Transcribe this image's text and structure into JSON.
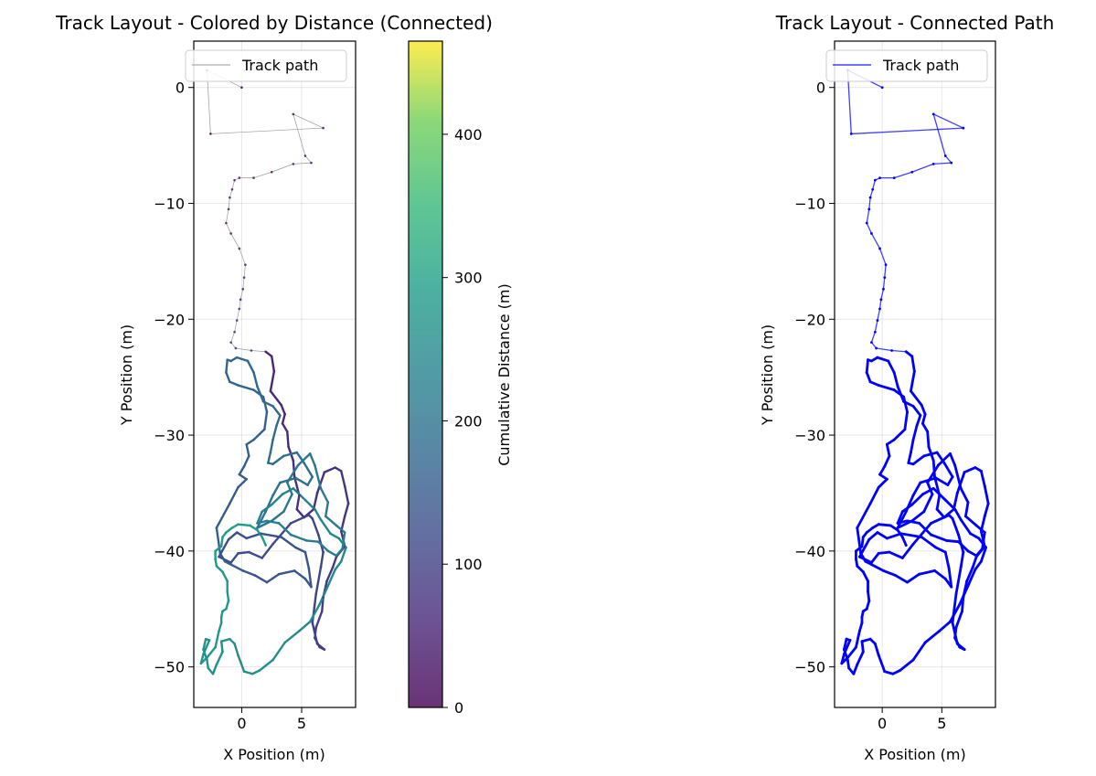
{
  "chart_data": [
    {
      "type": "line",
      "title": "Track Layout - Colored by Distance (Connected)",
      "xlabel": "X Position (m)",
      "ylabel": "Y Position (m)",
      "xlim": [
        -4,
        9.5
      ],
      "ylim": [
        -53.5,
        4
      ],
      "xticks": [
        0,
        5
      ],
      "yticks": [
        0,
        -10,
        -20,
        -30,
        -40,
        -50
      ],
      "grid": true,
      "legend": {
        "position": "top-left",
        "entries": [
          "Track path"
        ]
      },
      "colorbar": {
        "label": "Cumulative Distance (m)",
        "range": [
          0,
          465
        ],
        "ticks": [
          0,
          100,
          200,
          300,
          400
        ],
        "colormap": "viridis"
      },
      "series": [
        {
          "name": "Track path",
          "color": "#999999",
          "points": [
            [
              0,
              0.0
            ],
            [
              -2.9,
              1.5
            ],
            [
              -2.6,
              -4.0
            ],
            [
              6.8,
              -3.5
            ],
            [
              4.3,
              -2.3
            ],
            [
              5.3,
              -5.9
            ],
            [
              5.8,
              -6.5
            ],
            [
              4.3,
              -6.6
            ],
            [
              2.5,
              -7.3
            ],
            [
              1.0,
              -7.8
            ],
            [
              -0.2,
              -7.8
            ],
            [
              -0.6,
              -8.0
            ],
            [
              -0.8,
              -8.8
            ],
            [
              -1.0,
              -9.5
            ],
            [
              -1.1,
              -10.5
            ],
            [
              -1.3,
              -11.7
            ],
            [
              -0.9,
              -12.6
            ],
            [
              -0.2,
              -13.9
            ],
            [
              0.3,
              -15.3
            ],
            [
              0.2,
              -16.4
            ],
            [
              0.1,
              -17.4
            ],
            [
              -0.1,
              -18.3
            ],
            [
              -0.2,
              -19.1
            ],
            [
              -0.4,
              -20.1
            ],
            [
              -0.6,
              -21.1
            ],
            [
              -0.9,
              -22.0
            ],
            [
              -0.5,
              -22.5
            ],
            [
              0.8,
              -22.7
            ],
            [
              2.0,
              -22.8
            ],
            [
              2.5,
              -23.2
            ],
            [
              2.7,
              -24.5
            ],
            [
              2.4,
              -26.2
            ],
            [
              3.3,
              -27.4
            ],
            [
              3.6,
              -28.2
            ],
            [
              3.4,
              -29.0
            ],
            [
              3.8,
              -29.7
            ],
            [
              3.9,
              -31.0
            ],
            [
              4.3,
              -32.2
            ],
            [
              4.4,
              -33.6
            ],
            [
              4.8,
              -35.2
            ],
            [
              4.6,
              -36.4
            ],
            [
              5.2,
              -37.1
            ],
            [
              6.0,
              -36.4
            ],
            [
              6.3,
              -35.0
            ],
            [
              6.9,
              -33.2
            ],
            [
              7.8,
              -32.8
            ],
            [
              8.3,
              -33.1
            ],
            [
              8.6,
              -34.4
            ],
            [
              8.9,
              -35.9
            ],
            [
              8.6,
              -37.0
            ],
            [
              8.3,
              -38.3
            ],
            [
              8.6,
              -39.6
            ],
            [
              7.9,
              -40.5
            ],
            [
              7.6,
              -41.4
            ],
            [
              7.1,
              -42.6
            ],
            [
              6.8,
              -44.0
            ],
            [
              6.7,
              -45.2
            ],
            [
              6.2,
              -46.6
            ],
            [
              6.1,
              -47.5
            ],
            [
              6.5,
              -48.3
            ],
            [
              6.9,
              -48.5
            ],
            [
              6.3,
              -48.0
            ],
            [
              5.9,
              -46.2
            ],
            [
              6.2,
              -43.7
            ],
            [
              6.6,
              -41.4
            ],
            [
              6.8,
              -40.1
            ],
            [
              6.4,
              -38.6
            ],
            [
              5.9,
              -37.2
            ],
            [
              5.6,
              -36.9
            ],
            [
              4.1,
              -37.6
            ],
            [
              2.6,
              -39.4
            ],
            [
              1.7,
              -40.6
            ],
            [
              0.6,
              -40.1
            ],
            [
              -0.3,
              -40.2
            ],
            [
              -0.9,
              -41.0
            ],
            [
              -1.9,
              -40.5
            ],
            [
              -1.1,
              -39.0
            ],
            [
              -0.4,
              -38.4
            ],
            [
              0.4,
              -38.9
            ],
            [
              1.6,
              -38.5
            ],
            [
              3.3,
              -38.8
            ],
            [
              4.5,
              -39.7
            ],
            [
              5.3,
              -40.1
            ],
            [
              5.6,
              -41.5
            ],
            [
              5.8,
              -43.1
            ],
            [
              5.3,
              -42.4
            ],
            [
              4.4,
              -41.7
            ],
            [
              3.1,
              -42.0
            ],
            [
              2.1,
              -42.7
            ],
            [
              1.1,
              -42.1
            ],
            [
              0.1,
              -41.7
            ],
            [
              -1.4,
              -40.9
            ],
            [
              -1.8,
              -40.2
            ],
            [
              -2.1,
              -38.0
            ],
            [
              -1.0,
              -35.9
            ],
            [
              -0.3,
              -34.5
            ],
            [
              0.4,
              -33.8
            ],
            [
              -0.2,
              -33.4
            ],
            [
              0.2,
              -32.7
            ],
            [
              0.6,
              -31.8
            ],
            [
              0.4,
              -30.8
            ],
            [
              1.0,
              -30.4
            ],
            [
              1.9,
              -29.5
            ],
            [
              2.1,
              -28.0
            ],
            [
              1.8,
              -26.7
            ],
            [
              1.0,
              -26.1
            ],
            [
              -0.3,
              -25.7
            ],
            [
              -1.0,
              -25.4
            ],
            [
              -1.3,
              -24.6
            ],
            [
              -1.2,
              -23.5
            ],
            [
              -0.9,
              -23.6
            ],
            [
              -0.4,
              -23.3
            ],
            [
              0.5,
              -23.6
            ],
            [
              1.0,
              -24.6
            ],
            [
              1.3,
              -25.8
            ],
            [
              1.8,
              -27.1
            ],
            [
              2.6,
              -27.5
            ],
            [
              3.2,
              -28.3
            ],
            [
              2.9,
              -29.2
            ],
            [
              2.6,
              -30.4
            ],
            [
              2.4,
              -31.5
            ],
            [
              2.2,
              -32.4
            ],
            [
              2.6,
              -32.5
            ],
            [
              3.5,
              -31.8
            ],
            [
              4.6,
              -31.5
            ],
            [
              5.2,
              -32.4
            ],
            [
              5.9,
              -33.6
            ],
            [
              5.5,
              -34.3
            ],
            [
              4.5,
              -33.7
            ],
            [
              3.2,
              -34.1
            ],
            [
              2.6,
              -35.2
            ],
            [
              2.0,
              -36.6
            ],
            [
              1.3,
              -38.0
            ],
            [
              2.5,
              -37.4
            ],
            [
              3.5,
              -36.6
            ],
            [
              4.2,
              -35.1
            ],
            [
              3.8,
              -34.1
            ],
            [
              4.7,
              -32.6
            ],
            [
              5.7,
              -31.6
            ],
            [
              6.1,
              -32.6
            ],
            [
              6.6,
              -34.6
            ],
            [
              7.2,
              -35.8
            ],
            [
              7.0,
              -37.0
            ],
            [
              7.9,
              -37.8
            ],
            [
              8.6,
              -38.4
            ],
            [
              8.4,
              -39.8
            ],
            [
              7.9,
              -40.4
            ],
            [
              7.2,
              -40.0
            ],
            [
              6.4,
              -39.2
            ],
            [
              5.4,
              -39.1
            ],
            [
              4.1,
              -38.6
            ],
            [
              3.1,
              -37.6
            ],
            [
              2.1,
              -37.4
            ],
            [
              1.3,
              -37.6
            ],
            [
              1.7,
              -36.6
            ],
            [
              2.5,
              -36.0
            ],
            [
              3.4,
              -35.1
            ],
            [
              4.3,
              -34.6
            ],
            [
              5.3,
              -35.6
            ],
            [
              6.1,
              -36.4
            ],
            [
              6.6,
              -37.3
            ],
            [
              7.4,
              -38.5
            ],
            [
              8.1,
              -38.9
            ],
            [
              8.7,
              -39.7
            ],
            [
              8.3,
              -40.9
            ],
            [
              7.8,
              -41.6
            ],
            [
              7.2,
              -43.0
            ],
            [
              6.5,
              -44.6
            ],
            [
              5.7,
              -46.1
            ],
            [
              4.8,
              -46.9
            ],
            [
              3.6,
              -47.9
            ],
            [
              2.6,
              -49.4
            ],
            [
              1.5,
              -50.3
            ],
            [
              0.9,
              -50.6
            ],
            [
              0.2,
              -50.4
            ],
            [
              -0.3,
              -49.0
            ],
            [
              -0.6,
              -48.0
            ],
            [
              -1.0,
              -47.6
            ],
            [
              -1.7,
              -47.8
            ],
            [
              -1.6,
              -48.7
            ],
            [
              -2.1,
              -49.8
            ],
            [
              -2.4,
              -50.6
            ],
            [
              -2.8,
              -50.1
            ],
            [
              -2.9,
              -49.4
            ],
            [
              -3.2,
              -48.5
            ],
            [
              -3.0,
              -47.6
            ],
            [
              -2.7,
              -47.7
            ],
            [
              -3.2,
              -48.9
            ],
            [
              -3.4,
              -49.7
            ],
            [
              -2.9,
              -49.2
            ],
            [
              -2.2,
              -48.3
            ],
            [
              -1.9,
              -46.9
            ],
            [
              -1.7,
              -46.2
            ],
            [
              -1.7,
              -45.7
            ],
            [
              -1.6,
              -45.2
            ],
            [
              -1.3,
              -45.0
            ],
            [
              -1.1,
              -44.3
            ],
            [
              -1.2,
              -43.5
            ],
            [
              -1.2,
              -42.6
            ],
            [
              -1.6,
              -41.8
            ],
            [
              -2.1,
              -41.3
            ],
            [
              -2.2,
              -40.7
            ],
            [
              -2.2,
              -40.0
            ],
            [
              -1.7,
              -39.6
            ],
            [
              -1.6,
              -38.8
            ],
            [
              -1.3,
              -38.4
            ],
            [
              -0.8,
              -38.0
            ],
            [
              -0.3,
              -37.7
            ],
            [
              0.7,
              -37.8
            ],
            [
              1.3,
              -38.2
            ],
            [
              1.7,
              -38.8
            ],
            [
              2.0,
              -39.5
            ]
          ]
        }
      ]
    },
    {
      "type": "line",
      "title": "Track Layout - Connected Path",
      "xlabel": "X Position (m)",
      "ylabel": "Y Position (m)",
      "xlim": [
        -4,
        9.5
      ],
      "ylim": [
        -53.5,
        4
      ],
      "xticks": [
        0,
        5
      ],
      "yticks": [
        0,
        -10,
        -20,
        -30,
        -40,
        -50
      ],
      "grid": true,
      "legend": {
        "position": "top-left",
        "entries": [
          "Track path"
        ]
      },
      "series": [
        {
          "name": "Track path",
          "color": "#0000ff",
          "same_points_as": 0
        }
      ]
    }
  ]
}
